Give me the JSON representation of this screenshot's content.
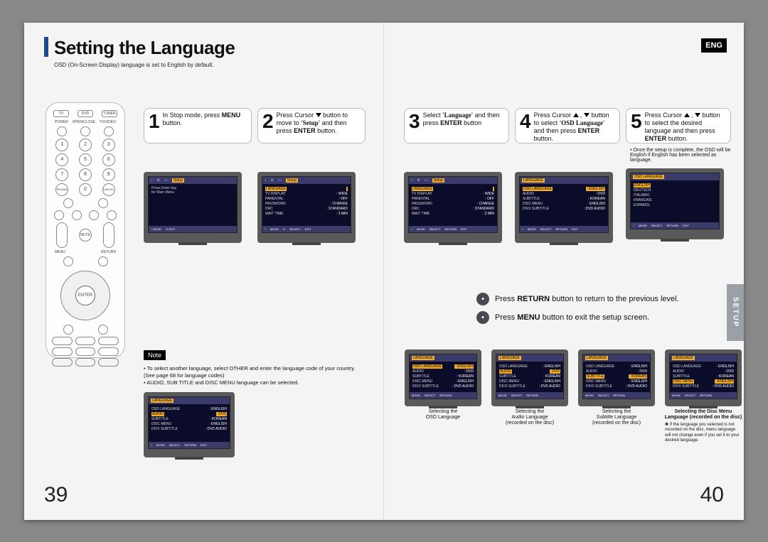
{
  "title": "Setting the Language",
  "subtitle": "OSD (On-Screen Display) language is set to English by default.",
  "eng_badge": "ENG",
  "side_tab": "SETUP",
  "page_left_num": "39",
  "page_right_num": "40",
  "remote": {
    "top_pills": [
      "TV",
      "DVD",
      "TUNER"
    ],
    "second_row_labels": [
      "POWER",
      "OPEN/CLOSE",
      "TV/VIDEO"
    ],
    "num_pad": [
      [
        "1",
        "2",
        "3"
      ],
      [
        "4",
        "5",
        "6"
      ],
      [
        "7",
        "8",
        "9"
      ],
      [
        "REMAIN",
        "0",
        "CANCEL"
      ]
    ],
    "menu_label": "MENU",
    "return_label": "RETURN",
    "enter_label": "ENTER",
    "mute_label": "MUTE",
    "bottom_rows": [
      [
        "SLEEP",
        "DVD",
        "TUNER"
      ],
      [
        "SUBTITLE",
        "SETUP",
        "—"
      ],
      [
        "ZOOM",
        "—",
        "—"
      ]
    ]
  },
  "steps": [
    {
      "n": "1",
      "html": "In Stop mode, press <b>MENU</b> button."
    },
    {
      "n": "2",
      "html": "Press Cursor <span class='tri tri-down'></span> button to move to <span class='serif'><b>'Setup'</b></span> and then press <b>ENTER</b> button."
    },
    {
      "n": "3",
      "html": "Select <span class='serif'><b>'Language'</b></span> and then press <b>ENTER</b> button"
    },
    {
      "n": "4",
      "html": "Press Cursor <span class='tri tri-up'></span> , <span class='tri tri-down'></span> button to select <span class='serif'><b>'OSD Language'</b></span> and then press <b>ENTER</b> button."
    },
    {
      "n": "5",
      "html": "Press Cursor <span class='tri tri-up'></span> , <span class='tri tri-down'></span> button to select the desired language and then press <b>ENTER</b> button."
    }
  ],
  "step5_note": "Once the setup is complete, the OSD will be English if English has been selected as language.",
  "hints": [
    {
      "icon": "•",
      "html": "Press <b>RETURN</b> button to return to the previous level."
    },
    {
      "icon": "•",
      "html": "Press <b>MENU</b> button to exit the setup screen."
    }
  ],
  "note_tag": "Note",
  "notes": [
    "To select another language, select OTHER and enter the language code of your country. (See page 68 for language codes)",
    "AUDIO, SUB TITLE and DISC MENU language can be selected."
  ],
  "osd": {
    "tabs": [
      "Audio",
      "System",
      "Display"
    ],
    "tab_setup": "Setup",
    "foot": [
      "MOVE",
      "SELECT",
      "RETURN",
      "EXIT"
    ],
    "s1_lines": [
      "Press Enter key",
      "for Main Menu"
    ],
    "s2_rows": [
      {
        "k": "LANGUAGE",
        "v": ""
      },
      {
        "k": "TV DISPLAY",
        "v": ": WIDE"
      },
      {
        "k": "PARENTAL",
        "v": ": OFF"
      },
      {
        "k": "PASSWORD",
        "v": ": CHANGE"
      },
      {
        "k": "DRC",
        "v": ": STANDARD"
      },
      {
        "k": "WAIT TIME",
        "v": ": 3 MIN"
      }
    ],
    "s3_title": "LANGUAGE",
    "s3_rows": [
      {
        "k": "OSD LANGUAGE",
        "v": ": ENGLISH",
        "sel": true
      },
      {
        "k": "AUDIO",
        "v": ": DVD"
      },
      {
        "k": "SUBTITLE",
        "v": ": KOREAN"
      },
      {
        "k": "DISC MENU",
        "v": ": ENGLISH"
      },
      {
        "k": "DIVX SUBTITLE",
        "v": ": DVD AUDIO"
      }
    ],
    "s5_title": "OSD LANGUAGE",
    "s5_opts": [
      "ENGLISH",
      "DEUTSCH",
      "ITALIANO",
      "FRANCAIS",
      "ESPANOL"
    ],
    "grid_titles": [
      "LANGUAGE",
      "LANGUAGE",
      "LANGUAGE",
      "LANGUAGE"
    ]
  },
  "grid_caps": [
    {
      "l1": "Selecting the",
      "l2": "OSD Language",
      "sub": ""
    },
    {
      "l1": "Selecting the",
      "l2": "Audio Language",
      "sub": "(recorded on the disc)"
    },
    {
      "l1": "Selecting the",
      "l2": "Subtitle Language",
      "sub": "(recorded on the disc)"
    },
    {
      "l1": "Selecting the Disc Menu",
      "l2": "Language (recorded on the disc)",
      "bold": true
    }
  ],
  "grid_note": "If the language you selected is not recorded on the disc, menu language will not change even if you set it to your desired language.",
  "colors": {
    "accent": "#1b4a8a",
    "highlight": "#f4ad2a"
  }
}
